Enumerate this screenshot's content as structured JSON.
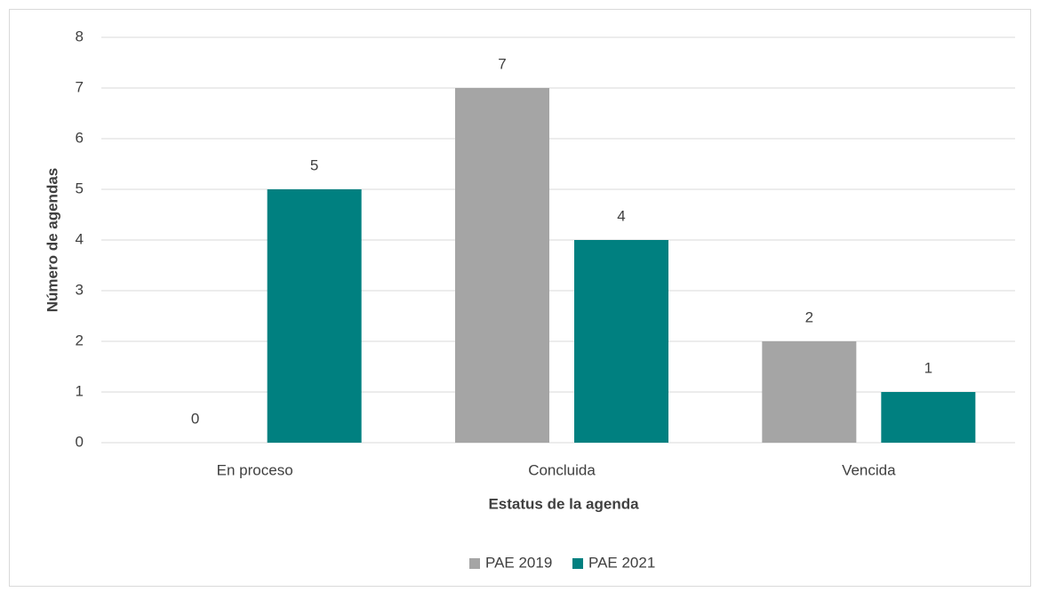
{
  "chart_data": {
    "type": "bar",
    "categories": [
      "En proceso",
      "Concluida",
      "Vencida"
    ],
    "series": [
      {
        "name": "PAE 2019",
        "color": "#a5a5a5",
        "values": [
          0,
          7,
          2
        ]
      },
      {
        "name": "PAE 2021",
        "color": "#008080",
        "values": [
          5,
          4,
          1
        ]
      }
    ],
    "x_label": "Estatus de la agenda",
    "y_label": "Número de agendas",
    "ylim": [
      0,
      8
    ],
    "yticks": [
      0,
      1,
      2,
      3,
      4,
      5,
      6,
      7,
      8
    ],
    "grid": true,
    "legend": "bottom"
  }
}
